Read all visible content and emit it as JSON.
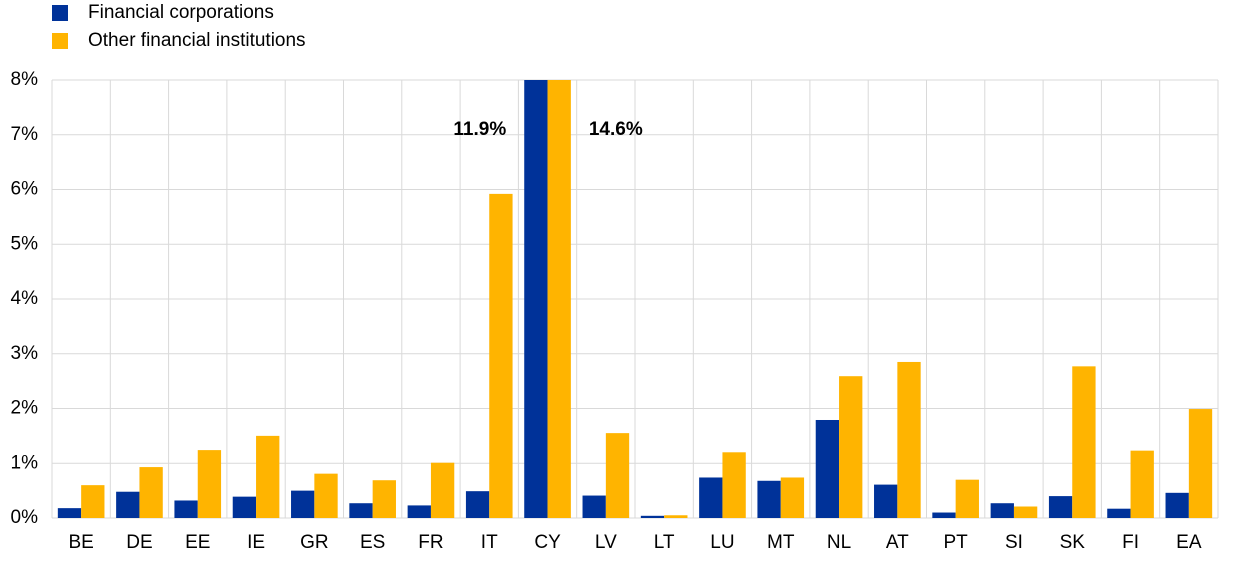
{
  "chart_data": {
    "type": "bar",
    "categories": [
      "BE",
      "DE",
      "EE",
      "IE",
      "GR",
      "ES",
      "FR",
      "IT",
      "CY",
      "LV",
      "LT",
      "LU",
      "MT",
      "NL",
      "AT",
      "PT",
      "SI",
      "SK",
      "FI",
      "EA"
    ],
    "series": [
      {
        "name": "Financial corporations",
        "color": "#003299",
        "values": [
          0.18,
          0.48,
          0.32,
          0.39,
          0.5,
          0.27,
          0.23,
          0.49,
          11.9,
          0.41,
          0.04,
          0.74,
          0.68,
          1.79,
          0.61,
          0.1,
          0.27,
          0.4,
          0.17,
          0.46
        ],
        "value_labels": [
          null,
          null,
          null,
          null,
          null,
          null,
          null,
          null,
          "11.9%",
          null,
          null,
          null,
          null,
          null,
          null,
          null,
          null,
          null,
          null,
          null
        ]
      },
      {
        "name": "Other financial institutions",
        "color": "#ffb400",
        "values": [
          0.6,
          0.93,
          1.24,
          1.5,
          0.81,
          0.69,
          1.01,
          5.92,
          14.6,
          1.55,
          0.05,
          1.2,
          0.74,
          2.59,
          2.85,
          0.7,
          0.21,
          2.77,
          1.23,
          1.99
        ],
        "value_labels": [
          null,
          null,
          null,
          null,
          null,
          null,
          null,
          null,
          "14.6%",
          null,
          null,
          null,
          null,
          null,
          null,
          null,
          null,
          null,
          null,
          null
        ]
      }
    ],
    "ylim": [
      0,
      8
    ],
    "yticks": [
      {
        "value": 0,
        "label": "0%"
      },
      {
        "value": 1,
        "label": "1%"
      },
      {
        "value": 2,
        "label": "2%"
      },
      {
        "value": 3,
        "label": "3%"
      },
      {
        "value": 4,
        "label": "4%"
      },
      {
        "value": 5,
        "label": "5%"
      },
      {
        "value": 6,
        "label": "6%"
      },
      {
        "value": 7,
        "label": "7%"
      },
      {
        "value": 8,
        "label": "8%"
      }
    ],
    "grid": true,
    "legend": "top-left"
  }
}
